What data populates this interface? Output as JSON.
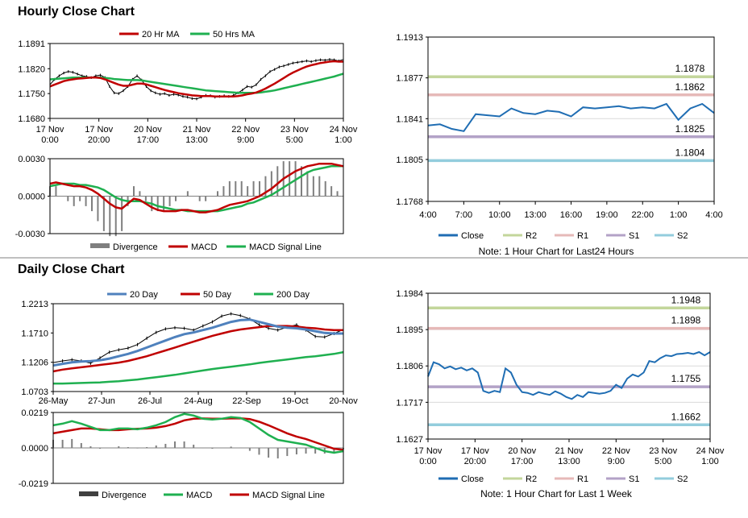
{
  "sections": {
    "hourly_title": "Hourly Close Chart",
    "daily_title": "Daily Close Chart"
  },
  "colors": {
    "ma_short": "#c00000",
    "ma_long": "#1fb050",
    "ma_200": "#1fb050",
    "ma_20day": "#4f81bd",
    "close": "#1f6db3",
    "r2": "#c3d69b",
    "r1": "#e6b9b8",
    "s1": "#b3a2c7",
    "s2": "#93cddd",
    "divergence": "#7f7f7f",
    "macd_red": "#c00000",
    "macd_green": "#1fb050"
  },
  "chart_data": [
    {
      "id": "hourly_price",
      "type": "line",
      "legend": [
        "20 Hr MA",
        "50 Hrs MA"
      ],
      "y_ticks": [
        "1.1891",
        "1.1820",
        "1.1750",
        "1.1680"
      ],
      "ylim": [
        1.168,
        1.1891
      ],
      "x_ticks": [
        [
          "17 Nov",
          "0:00"
        ],
        [
          "17 Nov",
          "20:00"
        ],
        [
          "20 Nov",
          "17:00"
        ],
        [
          "21 Nov",
          "13:00"
        ],
        [
          "22 Nov",
          "9:00"
        ],
        [
          "23 Nov",
          "5:00"
        ],
        [
          "24 Nov",
          "1:00"
        ]
      ],
      "close": [
        1.1775,
        1.179,
        1.18,
        1.1808,
        1.1812,
        1.181,
        1.1805,
        1.18,
        1.1798,
        1.1795,
        1.18,
        1.1802,
        1.1795,
        1.177,
        1.1752,
        1.175,
        1.1758,
        1.177,
        1.179,
        1.18,
        1.1788,
        1.177,
        1.1758,
        1.1752,
        1.1748,
        1.175,
        1.1745,
        1.1748,
        1.1746,
        1.1742,
        1.174,
        1.1736,
        1.1735,
        1.174,
        1.1745,
        1.1744,
        1.174,
        1.1742,
        1.1744,
        1.1742,
        1.1745,
        1.1752,
        1.176,
        1.177,
        1.1768,
        1.1775,
        1.179,
        1.18,
        1.1812,
        1.1818,
        1.1825,
        1.1828,
        1.1832,
        1.1836,
        1.1838,
        1.184,
        1.1842,
        1.184,
        1.1843,
        1.1845,
        1.1844,
        1.1846,
        1.1845,
        1.1842,
        1.1846
      ],
      "ma20": [
        1.177,
        1.1775,
        1.178,
        1.1785,
        1.1788,
        1.179,
        1.1792,
        1.1793,
        1.1794,
        1.1795,
        1.1795,
        1.1794,
        1.179,
        1.1785,
        1.178,
        1.1775,
        1.1772,
        1.1772,
        1.1775,
        1.1778,
        1.1778,
        1.1776,
        1.1772,
        1.1768,
        1.1764,
        1.176,
        1.1757,
        1.1754,
        1.1751,
        1.1749,
        1.1747,
        1.1745,
        1.1744,
        1.1743,
        1.1743,
        1.1743,
        1.1742,
        1.1742,
        1.1742,
        1.1742,
        1.1742,
        1.1743,
        1.1745,
        1.1748,
        1.175,
        1.1753,
        1.1758,
        1.1764,
        1.1771,
        1.1778,
        1.1786,
        1.1794,
        1.1802,
        1.1809,
        1.1815,
        1.1821,
        1.1826,
        1.183,
        1.1833,
        1.1836,
        1.1838,
        1.184,
        1.1841,
        1.184,
        1.184
      ],
      "ma50": [
        1.179,
        1.1791,
        1.1792,
        1.1793,
        1.1794,
        1.1795,
        1.1795,
        1.1795,
        1.1795,
        1.1795,
        1.1795,
        1.1795,
        1.1794,
        1.1793,
        1.1791,
        1.179,
        1.1789,
        1.1788,
        1.1788,
        1.1788,
        1.1787,
        1.1785,
        1.1783,
        1.1781,
        1.1779,
        1.1777,
        1.1775,
        1.1773,
        1.1771,
        1.1769,
        1.1767,
        1.1765,
        1.1763,
        1.1761,
        1.1759,
        1.1758,
        1.1757,
        1.1756,
        1.1755,
        1.1754,
        1.1753,
        1.1752,
        1.1752,
        1.1752,
        1.1752,
        1.1752,
        1.1753,
        1.1755,
        1.1757,
        1.1759,
        1.1762,
        1.1765,
        1.1768,
        1.1771,
        1.1774,
        1.1777,
        1.178,
        1.1783,
        1.1786,
        1.1789,
        1.1792,
        1.1795,
        1.1798,
        1.1802,
        1.1806
      ]
    },
    {
      "id": "hourly_macd",
      "type": "line",
      "legend": [
        "Divergence",
        "MACD",
        "MACD Signal Line"
      ],
      "y_ticks": [
        "0.0030",
        "0.0000",
        "-0.0030"
      ],
      "ylim": [
        -0.003,
        0.003
      ],
      "macd": [
        0.001,
        0.0011,
        0.001,
        0.0009,
        0.0008,
        0.0008,
        0.0007,
        0.0005,
        0.0002,
        -0.0002,
        -0.0006,
        -0.0009,
        -0.001,
        -0.0006,
        -0.0002,
        -0.0003,
        -0.0006,
        -0.0009,
        -0.0011,
        -0.0012,
        -0.0012,
        -0.0012,
        -0.0011,
        -0.0011,
        -0.0012,
        -0.0013,
        -0.0013,
        -0.0012,
        -0.0011,
        -0.0009,
        -0.0007,
        -0.0006,
        -0.0005,
        -0.0004,
        -0.0002,
        0.0,
        0.0003,
        0.0006,
        0.001,
        0.0014,
        0.0017,
        0.002,
        0.0022,
        0.0024,
        0.0025,
        0.0026,
        0.0026,
        0.0026,
        0.0025,
        0.0024
      ],
      "signal": [
        0.0008,
        0.0009,
        0.001,
        0.001,
        0.001,
        0.0009,
        0.0009,
        0.0008,
        0.0007,
        0.0005,
        0.0002,
        -0.0001,
        -0.0003,
        -0.0004,
        -0.0004,
        -0.0004,
        -0.0005,
        -0.0006,
        -0.0008,
        -0.0009,
        -0.001,
        -0.0011,
        -0.0011,
        -0.0012,
        -0.0012,
        -0.0012,
        -0.0012,
        -0.0012,
        -0.0012,
        -0.0011,
        -0.001,
        -0.0009,
        -0.0008,
        -0.0006,
        -0.0005,
        -0.0003,
        -0.0001,
        0.0001,
        0.0004,
        0.0007,
        0.001,
        0.0013,
        0.0016,
        0.0019,
        0.0021,
        0.0022,
        0.0023,
        0.0024,
        0.0024,
        0.0024
      ]
    },
    {
      "id": "hourly_levels",
      "type": "line",
      "legend": [
        "Close",
        "R2",
        "R1",
        "S1",
        "S2"
      ],
      "note": "Note: 1 Hour Chart for Last24 Hours",
      "y_ticks": [
        "1.1913",
        "1.1877",
        "1.1841",
        "1.1805",
        "1.1768"
      ],
      "ylim": [
        1.1768,
        1.1913
      ],
      "x_ticks": [
        "4:00",
        "7:00",
        "10:00",
        "13:00",
        "16:00",
        "19:00",
        "22:00",
        "1:00",
        "4:00"
      ],
      "levels": [
        {
          "name": "R2",
          "value": 1.1878,
          "label": "1.1878"
        },
        {
          "name": "R1",
          "value": 1.1862,
          "label": "1.1862"
        },
        {
          "name": "S1",
          "value": 1.1825,
          "label": "1.1825"
        },
        {
          "name": "S2",
          "value": 1.1804,
          "label": "1.1804"
        }
      ],
      "close": [
        1.1835,
        1.1836,
        1.1832,
        1.183,
        1.1845,
        1.1844,
        1.1843,
        1.185,
        1.1846,
        1.1845,
        1.1848,
        1.1847,
        1.1843,
        1.1851,
        1.185,
        1.1851,
        1.1852,
        1.185,
        1.1851,
        1.185,
        1.1854,
        1.184,
        1.185,
        1.1854,
        1.1846
      ]
    },
    {
      "id": "daily_price",
      "type": "line",
      "legend": [
        "20 Day",
        "50 Day",
        "200 Day"
      ],
      "y_ticks": [
        "1.2213",
        "1.1710",
        "1.1206",
        "1.0703"
      ],
      "ylim": [
        1.0703,
        1.2213
      ],
      "x_ticks": [
        "26-May",
        "27-Jun",
        "26-Jul",
        "24-Aug",
        "22-Sep",
        "19-Oct",
        "20-Nov"
      ],
      "close": [
        1.12,
        1.123,
        1.125,
        1.123,
        1.119,
        1.128,
        1.138,
        1.142,
        1.145,
        1.151,
        1.162,
        1.172,
        1.178,
        1.18,
        1.179,
        1.176,
        1.183,
        1.19,
        1.2,
        1.204,
        1.201,
        1.195,
        1.185,
        1.179,
        1.176,
        1.181,
        1.185,
        1.176,
        1.165,
        1.164,
        1.17,
        1.177
      ],
      "ma20": [
        1.115,
        1.118,
        1.1205,
        1.122,
        1.1225,
        1.124,
        1.127,
        1.131,
        1.135,
        1.14,
        1.146,
        1.152,
        1.158,
        1.164,
        1.169,
        1.172,
        1.176,
        1.18,
        1.185,
        1.19,
        1.193,
        1.194,
        1.19,
        1.186,
        1.182,
        1.18,
        1.179,
        1.177,
        1.174,
        1.171,
        1.17,
        1.17
      ],
      "ma50": [
        1.105,
        1.108,
        1.11,
        1.112,
        1.114,
        1.116,
        1.118,
        1.12,
        1.123,
        1.127,
        1.131,
        1.136,
        1.141,
        1.146,
        1.151,
        1.156,
        1.161,
        1.166,
        1.17,
        1.174,
        1.177,
        1.179,
        1.181,
        1.183,
        1.183,
        1.183,
        1.182,
        1.18,
        1.179,
        1.177,
        1.176,
        1.176
      ],
      "ma200": [
        1.084,
        1.084,
        1.0845,
        1.085,
        1.0855,
        1.086,
        1.087,
        1.088,
        1.0895,
        1.091,
        1.093,
        1.095,
        1.097,
        1.099,
        1.1015,
        1.104,
        1.1065,
        1.109,
        1.111,
        1.113,
        1.115,
        1.117,
        1.1195,
        1.1215,
        1.1235,
        1.1255,
        1.1275,
        1.1295,
        1.131,
        1.133,
        1.135,
        1.138
      ]
    },
    {
      "id": "daily_macd",
      "type": "line",
      "legend": [
        "Divergence",
        "MACD",
        "MACD Signal Line"
      ],
      "y_ticks": [
        "0.0219",
        "0.0000",
        "-0.0219"
      ],
      "ylim": [
        -0.0219,
        0.0219
      ],
      "macd": [
        0.014,
        0.015,
        0.0165,
        0.015,
        0.013,
        0.011,
        0.011,
        0.012,
        0.012,
        0.0115,
        0.0125,
        0.014,
        0.016,
        0.019,
        0.021,
        0.02,
        0.018,
        0.0175,
        0.018,
        0.019,
        0.0185,
        0.016,
        0.012,
        0.008,
        0.005,
        0.004,
        0.003,
        0.002,
        0.0,
        -0.002,
        -0.003,
        -0.002
      ],
      "signal": [
        0.009,
        0.01,
        0.011,
        0.012,
        0.012,
        0.0115,
        0.011,
        0.011,
        0.0115,
        0.0118,
        0.012,
        0.0125,
        0.0135,
        0.015,
        0.017,
        0.018,
        0.0182,
        0.018,
        0.018,
        0.0182,
        0.0183,
        0.0178,
        0.0162,
        0.014,
        0.0115,
        0.009,
        0.007,
        0.0055,
        0.0035,
        0.0015,
        -0.0005,
        -0.0012
      ]
    },
    {
      "id": "daily_levels",
      "type": "line",
      "legend": [
        "Close",
        "R2",
        "R1",
        "S1",
        "S2"
      ],
      "note": "Note: 1 Hour Chart for Last 1 Week",
      "y_ticks": [
        "1.1984",
        "1.1895",
        "1.1806",
        "1.1717",
        "1.1627"
      ],
      "ylim": [
        1.1627,
        1.1984
      ],
      "x_ticks": [
        [
          "17 Nov",
          "0:00"
        ],
        [
          "17 Nov",
          "20:00"
        ],
        [
          "20 Nov",
          "17:00"
        ],
        [
          "21 Nov",
          "13:00"
        ],
        [
          "22 Nov",
          "9:00"
        ],
        [
          "23 Nov",
          "5:00"
        ],
        [
          "24 Nov",
          "1:00"
        ]
      ],
      "levels": [
        {
          "name": "R2",
          "value": 1.1948,
          "label": "1.1948"
        },
        {
          "name": "R1",
          "value": 1.1898,
          "label": "1.1898"
        },
        {
          "name": "S1",
          "value": 1.1755,
          "label": "1.1755"
        },
        {
          "name": "S2",
          "value": 1.1662,
          "label": "1.1662"
        }
      ],
      "close": [
        1.178,
        1.1815,
        1.181,
        1.18,
        1.1805,
        1.1798,
        1.1802,
        1.1795,
        1.18,
        1.179,
        1.1745,
        1.174,
        1.1745,
        1.1742,
        1.18,
        1.179,
        1.176,
        1.1742,
        1.174,
        1.1735,
        1.1742,
        1.1738,
        1.1735,
        1.1744,
        1.1738,
        1.173,
        1.1725,
        1.1735,
        1.173,
        1.1742,
        1.174,
        1.1738,
        1.174,
        1.1745,
        1.176,
        1.1752,
        1.1775,
        1.1785,
        1.178,
        1.179,
        1.1818,
        1.1815,
        1.1825,
        1.1832,
        1.183,
        1.1835,
        1.1836,
        1.1838,
        1.1835,
        1.184,
        1.1832,
        1.184
      ]
    }
  ]
}
